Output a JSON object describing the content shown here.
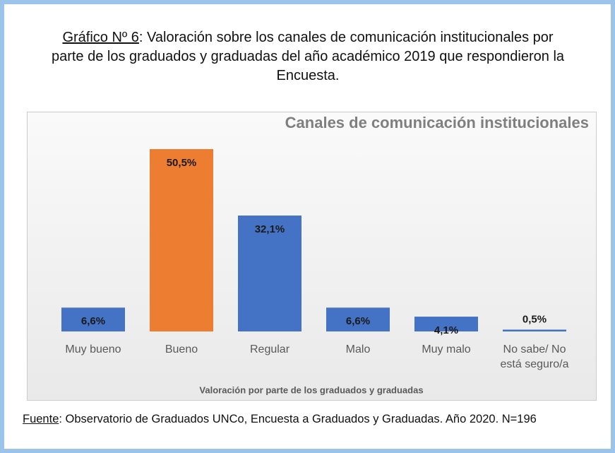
{
  "caption": {
    "label": "Gráfico Nº 6",
    "text": ": Valoración sobre los canales de comunicación institucionales por parte de los graduados y graduadas del año académico 2019 que respondieron la Encuesta."
  },
  "chart_data": {
    "type": "bar",
    "title": "Canales de comunicación institucionales",
    "categories": [
      "Muy bueno",
      "Bueno",
      "Regular",
      "Malo",
      "Muy malo",
      "No sabe/ No está seguro/a"
    ],
    "values": [
      6.6,
      50.5,
      32.1,
      6.6,
      4.1,
      0.5
    ],
    "value_labels": [
      "6,6%",
      "50,5%",
      "32,1%",
      "6,6%",
      "4,1%",
      "0,5%"
    ],
    "colors": [
      "#4472c4",
      "#ed7d31",
      "#4472c4",
      "#4472c4",
      "#4472c4",
      "#4472c4"
    ],
    "x_label": "Valoración por parte de los graduados y graduadas"
  },
  "source": {
    "label": "Fuente",
    "text": ": Observatorio de Graduados UNCo, Encuesta a Graduados y Graduadas. Año 2020. N=196"
  }
}
